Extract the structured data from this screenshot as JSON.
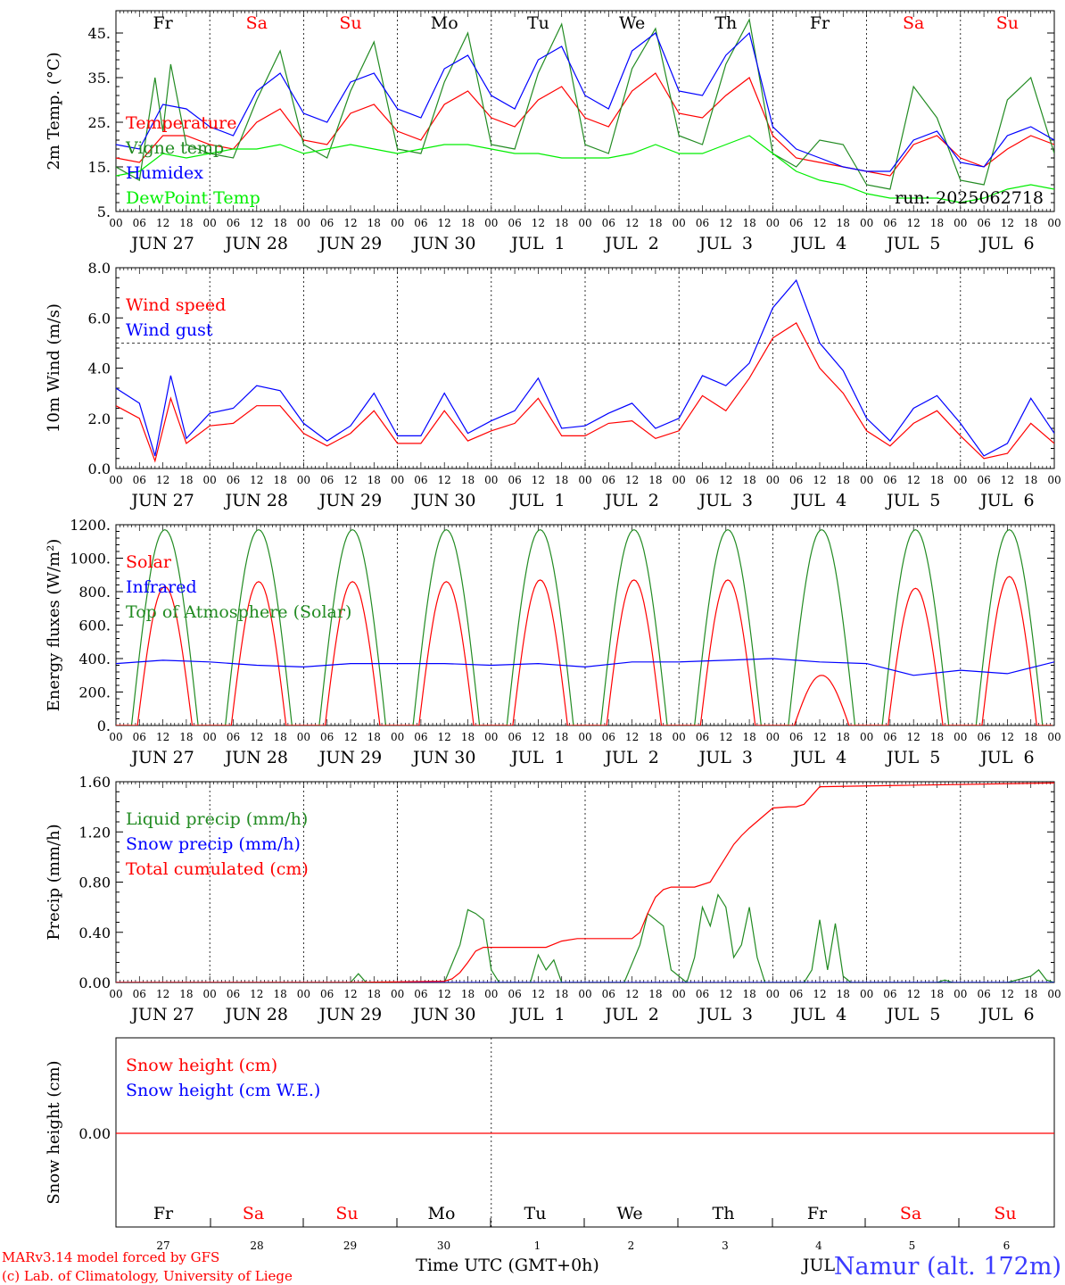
{
  "chart_data": [
    {
      "type": "line",
      "ylabel": "2m Temp. (°C)",
      "ylim": [
        5,
        50
      ],
      "yticks": [
        5,
        15,
        25,
        35,
        45
      ],
      "ytick_labels": [
        "5.",
        "15.",
        "25.",
        "35.",
        "45."
      ],
      "day_names": [
        {
          "name": "Fr",
          "color": "#000000"
        },
        {
          "name": "Sa",
          "color": "#ff0000"
        },
        {
          "name": "Su",
          "color": "#ff0000"
        },
        {
          "name": "Mo",
          "color": "#000000"
        },
        {
          "name": "Tu",
          "color": "#000000"
        },
        {
          "name": "We",
          "color": "#000000"
        },
        {
          "name": "Th",
          "color": "#000000"
        },
        {
          "name": "Fr",
          "color": "#000000"
        },
        {
          "name": "Sa",
          "color": "#ff0000"
        },
        {
          "name": "Su",
          "color": "#ff0000"
        }
      ],
      "run_label": "run: 2025062718",
      "legend": [
        {
          "label": "Temperature",
          "color": "#ff0000"
        },
        {
          "label": "Vigne temp",
          "color": "#228B22"
        },
        {
          "label": "Humidex",
          "color": "#0000ff"
        },
        {
          "label": "DewPoint Temp",
          "color": "#00ee00"
        }
      ],
      "series": [
        {
          "name": "Temperature",
          "color": "#ff0000",
          "x": [
            0,
            6,
            12,
            18,
            24,
            30,
            36,
            42,
            48,
            54,
            60,
            66,
            72,
            78,
            84,
            90,
            96,
            102,
            108,
            114,
            120,
            126,
            132,
            138,
            144,
            150,
            156,
            162,
            168,
            174,
            180,
            186,
            192,
            198,
            204,
            210,
            216,
            222,
            228,
            234,
            240
          ],
          "values": [
            17,
            16,
            22,
            22,
            20,
            19,
            25,
            28,
            21,
            20,
            27,
            29,
            23,
            21,
            29,
            32,
            26,
            24,
            30,
            33,
            26,
            24,
            32,
            36,
            27,
            26,
            31,
            35,
            22,
            17,
            16,
            15,
            14,
            13,
            20,
            22,
            17,
            15,
            19,
            22,
            20
          ]
        },
        {
          "name": "Vigne temp",
          "color": "#228B22",
          "x": [
            0,
            6,
            10,
            12,
            14,
            18,
            24,
            30,
            36,
            42,
            48,
            54,
            60,
            66,
            72,
            78,
            84,
            90,
            96,
            102,
            108,
            114,
            120,
            126,
            132,
            138,
            144,
            150,
            156,
            162,
            168,
            174,
            180,
            186,
            192,
            198,
            204,
            210,
            216,
            222,
            228,
            234,
            240
          ],
          "values": [
            15,
            12,
            35,
            23,
            38,
            20,
            18,
            17,
            30,
            41,
            20,
            17,
            32,
            43,
            19,
            18,
            34,
            45,
            20,
            19,
            36,
            47,
            20,
            18,
            37,
            46,
            22,
            20,
            38,
            48,
            18,
            15,
            21,
            20,
            11,
            10,
            33,
            26,
            12,
            11,
            30,
            35,
            18
          ]
        },
        {
          "name": "Humidex",
          "color": "#0000ff",
          "x": [
            0,
            6,
            12,
            18,
            24,
            30,
            36,
            42,
            48,
            54,
            60,
            66,
            72,
            78,
            84,
            90,
            96,
            102,
            108,
            114,
            120,
            126,
            132,
            138,
            144,
            150,
            156,
            162,
            168,
            174,
            180,
            186,
            192,
            198,
            204,
            210,
            216,
            222,
            228,
            234,
            240
          ],
          "values": [
            20,
            19,
            29,
            28,
            24,
            22,
            32,
            36,
            27,
            25,
            34,
            36,
            28,
            26,
            37,
            40,
            31,
            28,
            39,
            42,
            31,
            28,
            41,
            45,
            32,
            31,
            40,
            45,
            24,
            19,
            17,
            15,
            14,
            14,
            21,
            23,
            16,
            15,
            22,
            24,
            21
          ]
        },
        {
          "name": "DewPoint Temp",
          "color": "#00ee00",
          "x": [
            0,
            6,
            12,
            18,
            24,
            30,
            36,
            42,
            48,
            54,
            60,
            66,
            72,
            78,
            84,
            90,
            96,
            102,
            108,
            114,
            120,
            126,
            132,
            138,
            144,
            150,
            156,
            162,
            168,
            174,
            180,
            186,
            192,
            198,
            204,
            210,
            216,
            222,
            228,
            234,
            240
          ],
          "values": [
            13,
            14,
            18,
            17,
            18,
            19,
            19,
            20,
            18,
            19,
            20,
            19,
            18,
            19,
            20,
            20,
            19,
            18,
            18,
            17,
            17,
            17,
            18,
            20,
            18,
            18,
            20,
            22,
            18,
            14,
            12,
            11,
            9,
            8,
            8,
            8,
            7,
            8,
            10,
            11,
            10
          ]
        }
      ]
    },
    {
      "type": "line",
      "ylabel": "10m Wind (m/s)",
      "ylim": [
        0,
        8
      ],
      "yticks": [
        0,
        2,
        4,
        6,
        8
      ],
      "ytick_labels": [
        "0.0",
        "2.0",
        "4.0",
        "6.0",
        "8.0"
      ],
      "reference_line": 5,
      "legend": [
        {
          "label": "Wind speed",
          "color": "#ff0000"
        },
        {
          "label": "Wind gust",
          "color": "#0000ff"
        }
      ],
      "series": [
        {
          "name": "Wind speed",
          "color": "#ff0000",
          "x": [
            0,
            6,
            10,
            14,
            18,
            24,
            30,
            36,
            42,
            48,
            54,
            60,
            66,
            72,
            78,
            84,
            90,
            96,
            102,
            108,
            114,
            120,
            126,
            132,
            138,
            144,
            150,
            156,
            162,
            168,
            174,
            180,
            186,
            192,
            198,
            204,
            210,
            216,
            222,
            228,
            234,
            240
          ],
          "values": [
            2.5,
            2.0,
            0.3,
            2.8,
            1.0,
            1.7,
            1.8,
            2.5,
            2.5,
            1.4,
            0.9,
            1.4,
            2.3,
            1.0,
            1.0,
            2.3,
            1.1,
            1.5,
            1.8,
            2.8,
            1.3,
            1.3,
            1.8,
            1.9,
            1.2,
            1.5,
            2.9,
            2.3,
            3.6,
            5.2,
            5.8,
            4.0,
            3.0,
            1.5,
            0.9,
            1.8,
            2.3,
            1.3,
            0.4,
            0.6,
            1.8,
            1.0
          ]
        },
        {
          "name": "Wind gust",
          "color": "#0000ff",
          "x": [
            0,
            6,
            10,
            14,
            18,
            24,
            30,
            36,
            42,
            48,
            54,
            60,
            66,
            72,
            78,
            84,
            90,
            96,
            102,
            108,
            114,
            120,
            126,
            132,
            138,
            144,
            150,
            156,
            162,
            168,
            174,
            180,
            186,
            192,
            198,
            204,
            210,
            216,
            222,
            228,
            234,
            240
          ],
          "values": [
            3.2,
            2.6,
            0.5,
            3.7,
            1.2,
            2.2,
            2.4,
            3.3,
            3.1,
            1.8,
            1.1,
            1.7,
            3.0,
            1.3,
            1.3,
            3.0,
            1.4,
            1.9,
            2.3,
            3.6,
            1.6,
            1.7,
            2.2,
            2.6,
            1.6,
            2.0,
            3.7,
            3.3,
            4.2,
            6.4,
            7.5,
            5.0,
            3.9,
            2.0,
            1.1,
            2.4,
            2.9,
            1.8,
            0.5,
            1.0,
            2.8,
            1.4
          ]
        }
      ]
    },
    {
      "type": "line",
      "ylabel": "Energy fluxes (W/m²)",
      "ylim": [
        0,
        1200
      ],
      "yticks": [
        0,
        200,
        400,
        600,
        800,
        1000,
        1200
      ],
      "ytick_labels": [
        "0.",
        "200.",
        "400.",
        "600.",
        "800.",
        "1000.",
        "1200."
      ],
      "legend": [
        {
          "label": "Solar",
          "color": "#ff0000"
        },
        {
          "label": "Infrared",
          "color": "#0000ff"
        },
        {
          "label": "Top of Atmosphere (Solar)",
          "color": "#228B22"
        }
      ],
      "daily_peaks": {
        "Solar": [
          830,
          860,
          860,
          860,
          870,
          870,
          870,
          300,
          820,
          890
        ],
        "Top of Atmosphere (Solar)": [
          1170,
          1170,
          1170,
          1170,
          1170,
          1170,
          1170,
          1170,
          1170,
          1170
        ]
      },
      "series": [
        {
          "name": "Infrared",
          "color": "#0000ff",
          "x": [
            0,
            12,
            24,
            36,
            48,
            60,
            72,
            84,
            96,
            108,
            120,
            132,
            144,
            156,
            168,
            180,
            192,
            204,
            216,
            228,
            240
          ],
          "values": [
            370,
            390,
            380,
            360,
            350,
            370,
            370,
            370,
            360,
            370,
            350,
            380,
            380,
            390,
            400,
            380,
            370,
            300,
            330,
            310,
            380
          ]
        }
      ]
    },
    {
      "type": "line",
      "ylabel": "Precip (mm/h)",
      "ylim": [
        0,
        1.6
      ],
      "yticks": [
        0,
        0.4,
        0.8,
        1.2,
        1.6
      ],
      "ytick_labels": [
        "0.00",
        "0.40",
        "0.80",
        "1.20",
        "1.60"
      ],
      "legend": [
        {
          "label": "Liquid precip (mm/h)",
          "color": "#228B22"
        },
        {
          "label": "Snow precip (mm/h)",
          "color": "#0000ff"
        },
        {
          "label": "Total cumulated (cm)",
          "color": "#ff0000"
        }
      ],
      "series": [
        {
          "name": "Liquid precip (mm/h)",
          "color": "#228B22",
          "x": [
            0,
            60,
            62,
            64,
            84,
            88,
            90,
            92,
            94,
            96,
            98,
            100,
            106,
            108,
            110,
            112,
            114,
            130,
            134,
            136,
            138,
            140,
            142,
            146,
            148,
            150,
            152,
            154,
            156,
            158,
            160,
            162,
            164,
            166,
            176,
            178,
            180,
            182,
            184,
            186,
            188,
            192,
            210,
            212,
            214,
            220,
            228,
            234,
            236,
            238,
            240
          ],
          "values": [
            0,
            0,
            0.07,
            0,
            0,
            0.3,
            0.58,
            0.55,
            0.5,
            0.1,
            0,
            0,
            0,
            0.22,
            0.1,
            0.18,
            0,
            0,
            0.3,
            0.55,
            0.5,
            0.45,
            0.1,
            0,
            0.2,
            0.6,
            0.45,
            0.7,
            0.6,
            0.2,
            0.3,
            0.6,
            0.2,
            0,
            0,
            0.1,
            0.5,
            0.1,
            0.47,
            0.05,
            0,
            0,
            0,
            0.02,
            0,
            0,
            0,
            0.05,
            0.1,
            0.02,
            0
          ]
        },
        {
          "name": "Snow precip (mm/h)",
          "color": "#0000ff",
          "x": [
            0,
            240
          ],
          "values": [
            0,
            0
          ]
        },
        {
          "name": "Total cumulated (cm)",
          "color": "#ff0000",
          "x": [
            0,
            60,
            84,
            86,
            88,
            90,
            92,
            94,
            110,
            114,
            118,
            132,
            134,
            136,
            138,
            140,
            142,
            148,
            152,
            154,
            156,
            158,
            160,
            162,
            168,
            172,
            174,
            176,
            180,
            240
          ],
          "values": [
            0,
            0,
            0.01,
            0.03,
            0.08,
            0.16,
            0.25,
            0.28,
            0.28,
            0.33,
            0.35,
            0.35,
            0.4,
            0.55,
            0.68,
            0.74,
            0.76,
            0.76,
            0.8,
            0.9,
            1.0,
            1.1,
            1.17,
            1.23,
            1.39,
            1.4,
            1.4,
            1.42,
            1.56,
            1.59
          ]
        }
      ]
    },
    {
      "type": "line",
      "ylabel": "Snow height (cm)",
      "yticks": [
        0
      ],
      "ytick_labels": [
        "0.00"
      ],
      "legend": [
        {
          "label": "Snow height (cm)",
          "color": "#ff0000"
        },
        {
          "label": "Snow height (cm W.E.)",
          "color": "#0000ff"
        }
      ],
      "series": [
        {
          "name": "Snow height (cm)",
          "color": "#ff0000",
          "x": [
            0,
            240
          ],
          "values": [
            0,
            0
          ]
        }
      ],
      "day_names": [
        {
          "name": "Fr",
          "color": "#000000"
        },
        {
          "name": "Sa",
          "color": "#ff0000"
        },
        {
          "name": "Su",
          "color": "#ff0000"
        },
        {
          "name": "Mo",
          "color": "#000000"
        },
        {
          "name": "Tu",
          "color": "#000000"
        },
        {
          "name": "We",
          "color": "#000000"
        },
        {
          "name": "Th",
          "color": "#000000"
        },
        {
          "name": "Fr",
          "color": "#000000"
        },
        {
          "name": "Sa",
          "color": "#ff0000"
        },
        {
          "name": "Su",
          "color": "#ff0000"
        }
      ],
      "day_numbers": [
        "27",
        "28",
        "29",
        "30",
        "1",
        "2",
        "3",
        "4",
        "5",
        "6"
      ],
      "month_label": "JUL"
    }
  ],
  "x_axis": {
    "hour_ticks": [
      "00",
      "06",
      "12",
      "18"
    ],
    "last_tick": "00",
    "dates": [
      "JUN 27",
      "JUN 28",
      "JUN 29",
      "JUN 30",
      "JUL  1",
      "JUL  2",
      "JUL  3",
      "JUL  4",
      "JUL  5",
      "JUL  6"
    ],
    "xlabel": "Time UTC (GMT+0h)"
  },
  "footer": {
    "credit_line1": "MARv3.14 model forced by GFS",
    "credit_line2": "(c) Lab. of Climatology, University of Liege",
    "station": "Namur (alt. 172m)"
  },
  "colors": {
    "red": "#ff0000",
    "green": "#228B22",
    "blue": "#0000ff",
    "lime": "#00ee00"
  }
}
